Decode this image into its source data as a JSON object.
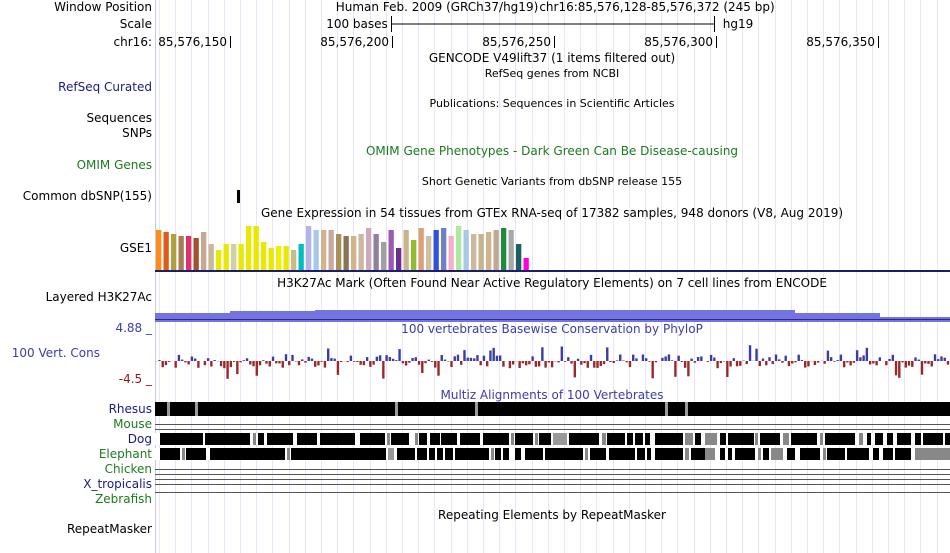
{
  "header": {
    "window_position_label": "Window Position",
    "scale_label": "Scale",
    "chrom_label": "chr16:",
    "assembly": "Human Feb. 2009 (GRCh37/hg19)",
    "position": "chr16:85,576,128-85,576,372 (245 bp)",
    "scale_text": "100 bases",
    "scale_db": "hg19"
  },
  "ruler": {
    "ticks": [
      "85,576,150",
      "85,576,200",
      "85,576,250",
      "85,576,300",
      "85,576,350"
    ]
  },
  "tracks": {
    "gencode_title": "GENCODE V49lift37 (1 items filtered out)",
    "refseq_label": "RefSeq Curated",
    "refseq_title": "RefSeq genes from NCBI",
    "publications_title": "Publications: Sequences in Scientific Articles",
    "sequences_label": "Sequences",
    "snps_label": "SNPs",
    "omim_label": "OMIM Genes",
    "omim_title": "OMIM Gene Phenotypes - Dark Green Can Be Disease-causing",
    "dbsnp_title": "Short Genetic Variants from dbSNP release 155",
    "dbsnp_label": "Common dbSNP(155)",
    "gtex_title": "Gene Expression in 54 tissues from GTEx RNA-seq of 17382 samples, 948 donors (V8, Aug 2019)",
    "gtex_label": "GSE1",
    "h3k27ac_label": "Layered H3K27Ac",
    "h3k27ac_title": "H3K27Ac Mark (Often Found Near Active Regulatory Elements) on 7 cell lines from ENCODE",
    "cons_max": "4.88 _",
    "cons_label": "100 Vert. Cons",
    "cons_min": "-4.5 _",
    "cons_title": "100 vertebrates Basewise Conservation by PhyloP",
    "multiz_title": "Multiz Alignments of 100 Vertebrates",
    "species": {
      "rhesus": "Rhesus",
      "mouse": "Mouse",
      "dog": "Dog",
      "elephant": "Elephant",
      "chicken": "Chicken",
      "xtrop": "X_tropicalis",
      "zebrafish": "Zebrafish"
    },
    "repeatmasker_label": "RepeatMasker",
    "repeatmasker_title": "Repeating Elements by RepeatMasker"
  },
  "gtex_colors": [
    "#ff8c1a",
    "#e05a1a",
    "#b0a040",
    "#a67c52",
    "#e0306a",
    "#a0522d",
    "#c8a890",
    "#c8b896",
    "#e8e800",
    "#e8e800",
    "#d0d0a0",
    "#e8e800",
    "#e8e800",
    "#e8e800",
    "#e8e800",
    "#e8e800",
    "#f0f000",
    "#e8e800",
    "#ccbb88",
    "#00bebe",
    "#b4b4e6",
    "#a8c8e8",
    "#d2b48c",
    "#c8a8a0",
    "#a8905a",
    "#8b7355",
    "#d2b48c",
    "#cdb79e",
    "#ccaabb",
    "#9080a0",
    "#a0a0a0",
    "#9a5ab0",
    "#6a3090",
    "#c8b48c",
    "#8fbc30",
    "#dca078",
    "#d0c0a0",
    "#3050e0",
    "#7080c0",
    "#f4b0c8",
    "#b0e8a0",
    "#a8c8e8",
    "#cdb79e",
    "#c8b48c",
    "#d2b48c",
    "#c0a890",
    "#1e8c3c",
    "#a8a8a8",
    "#1a6060",
    "#ff00e0"
  ],
  "colors": {
    "gtex_baseline": "#1d1d6e",
    "h3k27ac": "#7474e0",
    "cons_pos": "#3c3ca8",
    "cons_neg": "#9a2a2a"
  }
}
